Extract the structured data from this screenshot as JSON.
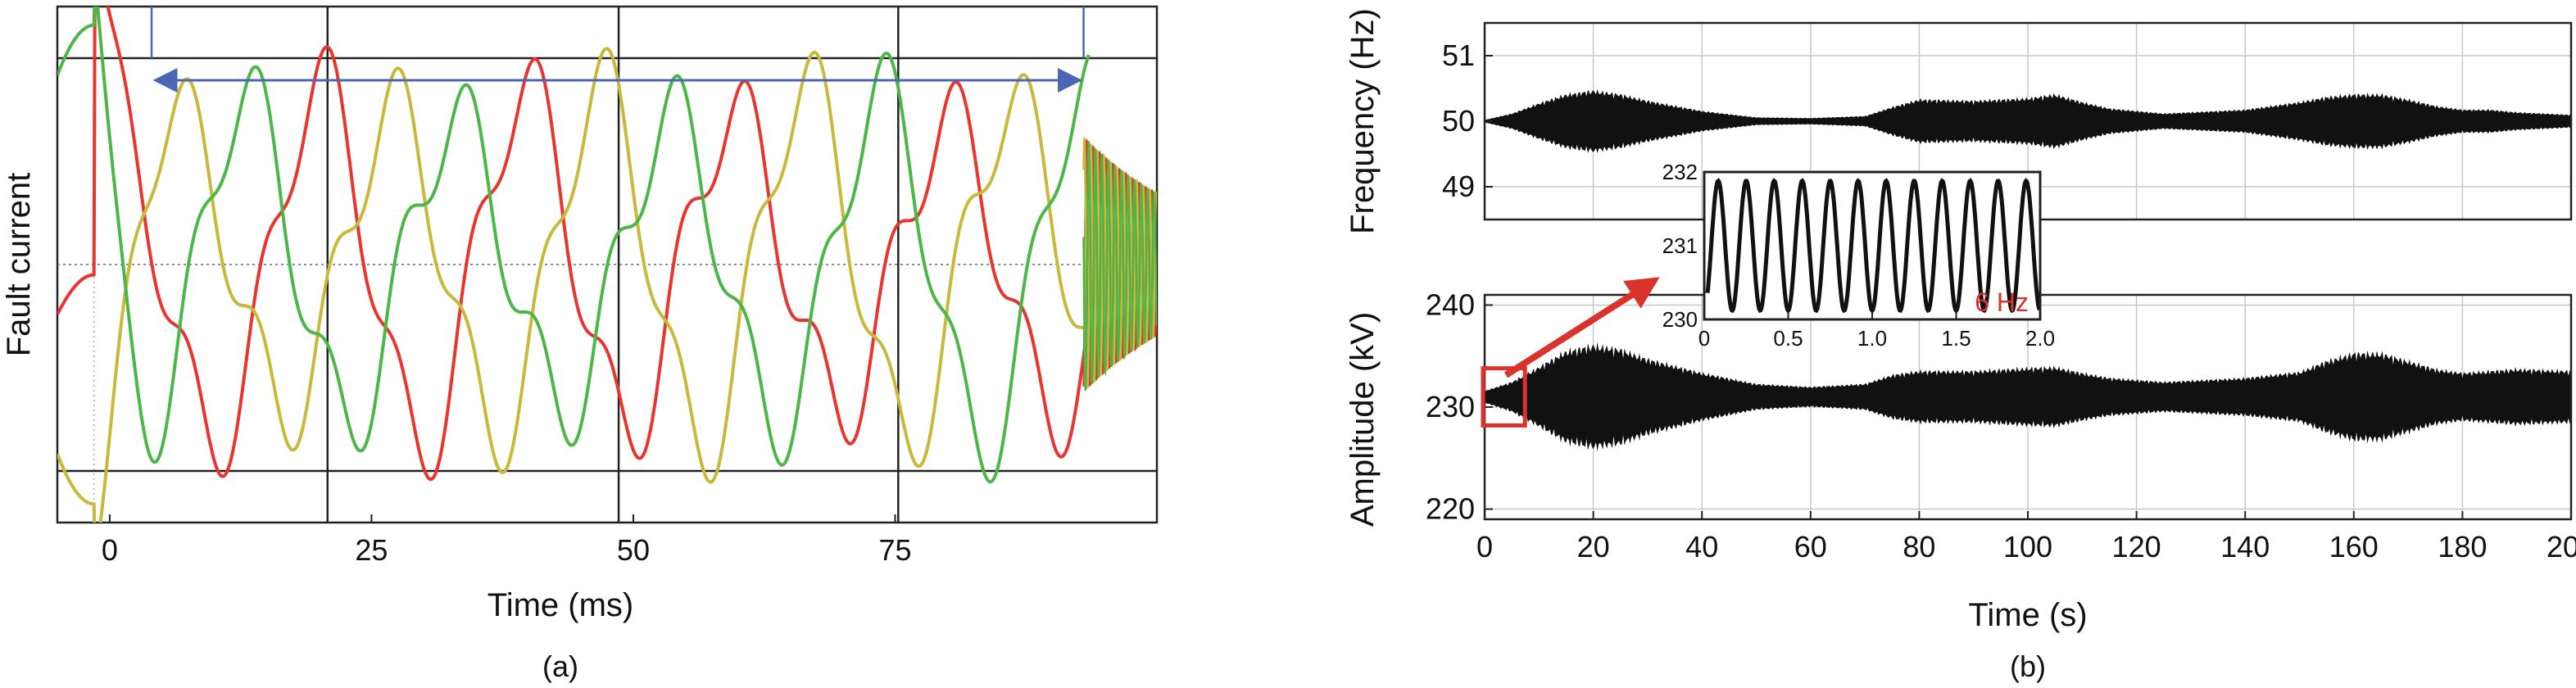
{
  "chart_data": [
    {
      "id": "a",
      "panel_label": "(a)",
      "type": "line",
      "xlabel": "Time (ms)",
      "ylabel": "Fault current",
      "xlim": [
        -5,
        100
      ],
      "xticks": [
        0,
        25,
        50,
        75
      ],
      "xtick_labels": [
        "0",
        "25",
        "50",
        "75"
      ],
      "ylim": [
        -1.25,
        1.25
      ],
      "grid": false,
      "vertical_lines_ms": [
        20.8,
        48.6,
        75.3
      ],
      "horizontal_lines": [
        1.0,
        -1.0
      ],
      "dotted_center_line": 0,
      "annotation": "double-headed arrow spanning approx. 4 ms to 93 ms",
      "arrow_span_ms": [
        4,
        93
      ],
      "fault_instant_ms": -1.5,
      "high_frequency_region_ms": [
        93,
        100
      ],
      "series": [
        {
          "color": "#e8352f",
          "phase_offset_deg": 0,
          "peak_near_zero": 1.65
        },
        {
          "color": "#c8b93b",
          "phase_offset_deg": -120,
          "peak_near_zero": -1.45
        },
        {
          "color": "#4cb748",
          "phase_offset_deg": 120,
          "peak_near_zero": 1.45
        }
      ],
      "steady_amplitude": 0.78,
      "fundamental_hz": 50,
      "harmonic": {
        "order": 3,
        "relative_amplitude": 0.27
      },
      "modulation": {
        "relative_amplitude": 0.12,
        "frequency_hz": 60
      },
      "colors": {
        "red": "#e8352f",
        "yellow": "#c8b93b",
        "green": "#4cb748",
        "arrow": "#4a66b4"
      }
    },
    {
      "id": "b-frequency",
      "panel_label": "(b)",
      "type": "area",
      "ylabel": "Frequency (Hz)",
      "ylim": [
        48.5,
        51.5
      ],
      "yticks": [
        49,
        50,
        51
      ],
      "ytick_labels": [
        "49",
        "50",
        "51"
      ],
      "xlim": [
        0,
        200
      ],
      "grid": true,
      "center": 50,
      "envelope": {
        "x": [
          0,
          5,
          10,
          15,
          20,
          25,
          30,
          40,
          50,
          60,
          70,
          75,
          80,
          90,
          100,
          105,
          110,
          115,
          125,
          140,
          150,
          155,
          160,
          165,
          170,
          175,
          180,
          185,
          190,
          200
        ],
        "half_width": [
          0.02,
          0.12,
          0.28,
          0.42,
          0.48,
          0.42,
          0.32,
          0.16,
          0.06,
          0.05,
          0.08,
          0.22,
          0.34,
          0.32,
          0.36,
          0.42,
          0.3,
          0.2,
          0.12,
          0.18,
          0.3,
          0.38,
          0.42,
          0.42,
          0.34,
          0.24,
          0.18,
          0.18,
          0.14,
          0.1
        ]
      },
      "color": "#111111"
    },
    {
      "id": "b-amplitude",
      "type": "area",
      "xlabel": "Time (s)",
      "ylabel": "Amplitude (kV)",
      "xlim": [
        0,
        200
      ],
      "xticks": [
        0,
        20,
        40,
        60,
        80,
        100,
        120,
        140,
        160,
        180,
        200
      ],
      "xtick_labels": [
        "0",
        "20",
        "40",
        "60",
        "80",
        "100",
        "120",
        "140",
        "160",
        "180",
        "200"
      ],
      "ylim": [
        219,
        241
      ],
      "yticks": [
        220,
        230,
        240
      ],
      "ytick_labels": [
        "220",
        "230",
        "240"
      ],
      "grid": true,
      "center": 231,
      "envelope": {
        "x": [
          0,
          5,
          10,
          15,
          20,
          25,
          30,
          40,
          50,
          60,
          70,
          75,
          80,
          90,
          100,
          105,
          110,
          115,
          125,
          140,
          150,
          155,
          160,
          165,
          170,
          175,
          180,
          185,
          190,
          200
        ],
        "half_width": [
          0.6,
          1.5,
          3.0,
          4.6,
          5.2,
          4.8,
          3.8,
          2.4,
          1.3,
          1.0,
          1.3,
          2.2,
          2.6,
          2.6,
          2.9,
          3.0,
          2.4,
          1.9,
          1.5,
          1.9,
          2.5,
          3.6,
          4.4,
          4.4,
          3.6,
          2.8,
          2.4,
          2.6,
          2.8,
          2.6
        ]
      },
      "color": "#111111",
      "highlight_box_x": [
        0,
        3.5
      ],
      "highlight_box_y": [
        228.2,
        233.8
      ],
      "highlight_color": "#d9332c"
    },
    {
      "id": "b-inset",
      "type": "line",
      "xlim": [
        0,
        2.0
      ],
      "xticks": [
        0,
        0.5,
        1.0,
        1.5,
        2.0
      ],
      "xtick_labels": [
        "0",
        "0.5",
        "1.0",
        "1.5",
        "2.0"
      ],
      "ylim": [
        230,
        232
      ],
      "yticks": [
        230,
        231,
        232
      ],
      "ytick_labels": [
        "230",
        "231",
        "232"
      ],
      "annotation": "6 Hz",
      "annotation_color": "#d9332c",
      "frequency_hz": 6,
      "center": 231,
      "amplitude": 0.88,
      "color": "#111111"
    }
  ]
}
